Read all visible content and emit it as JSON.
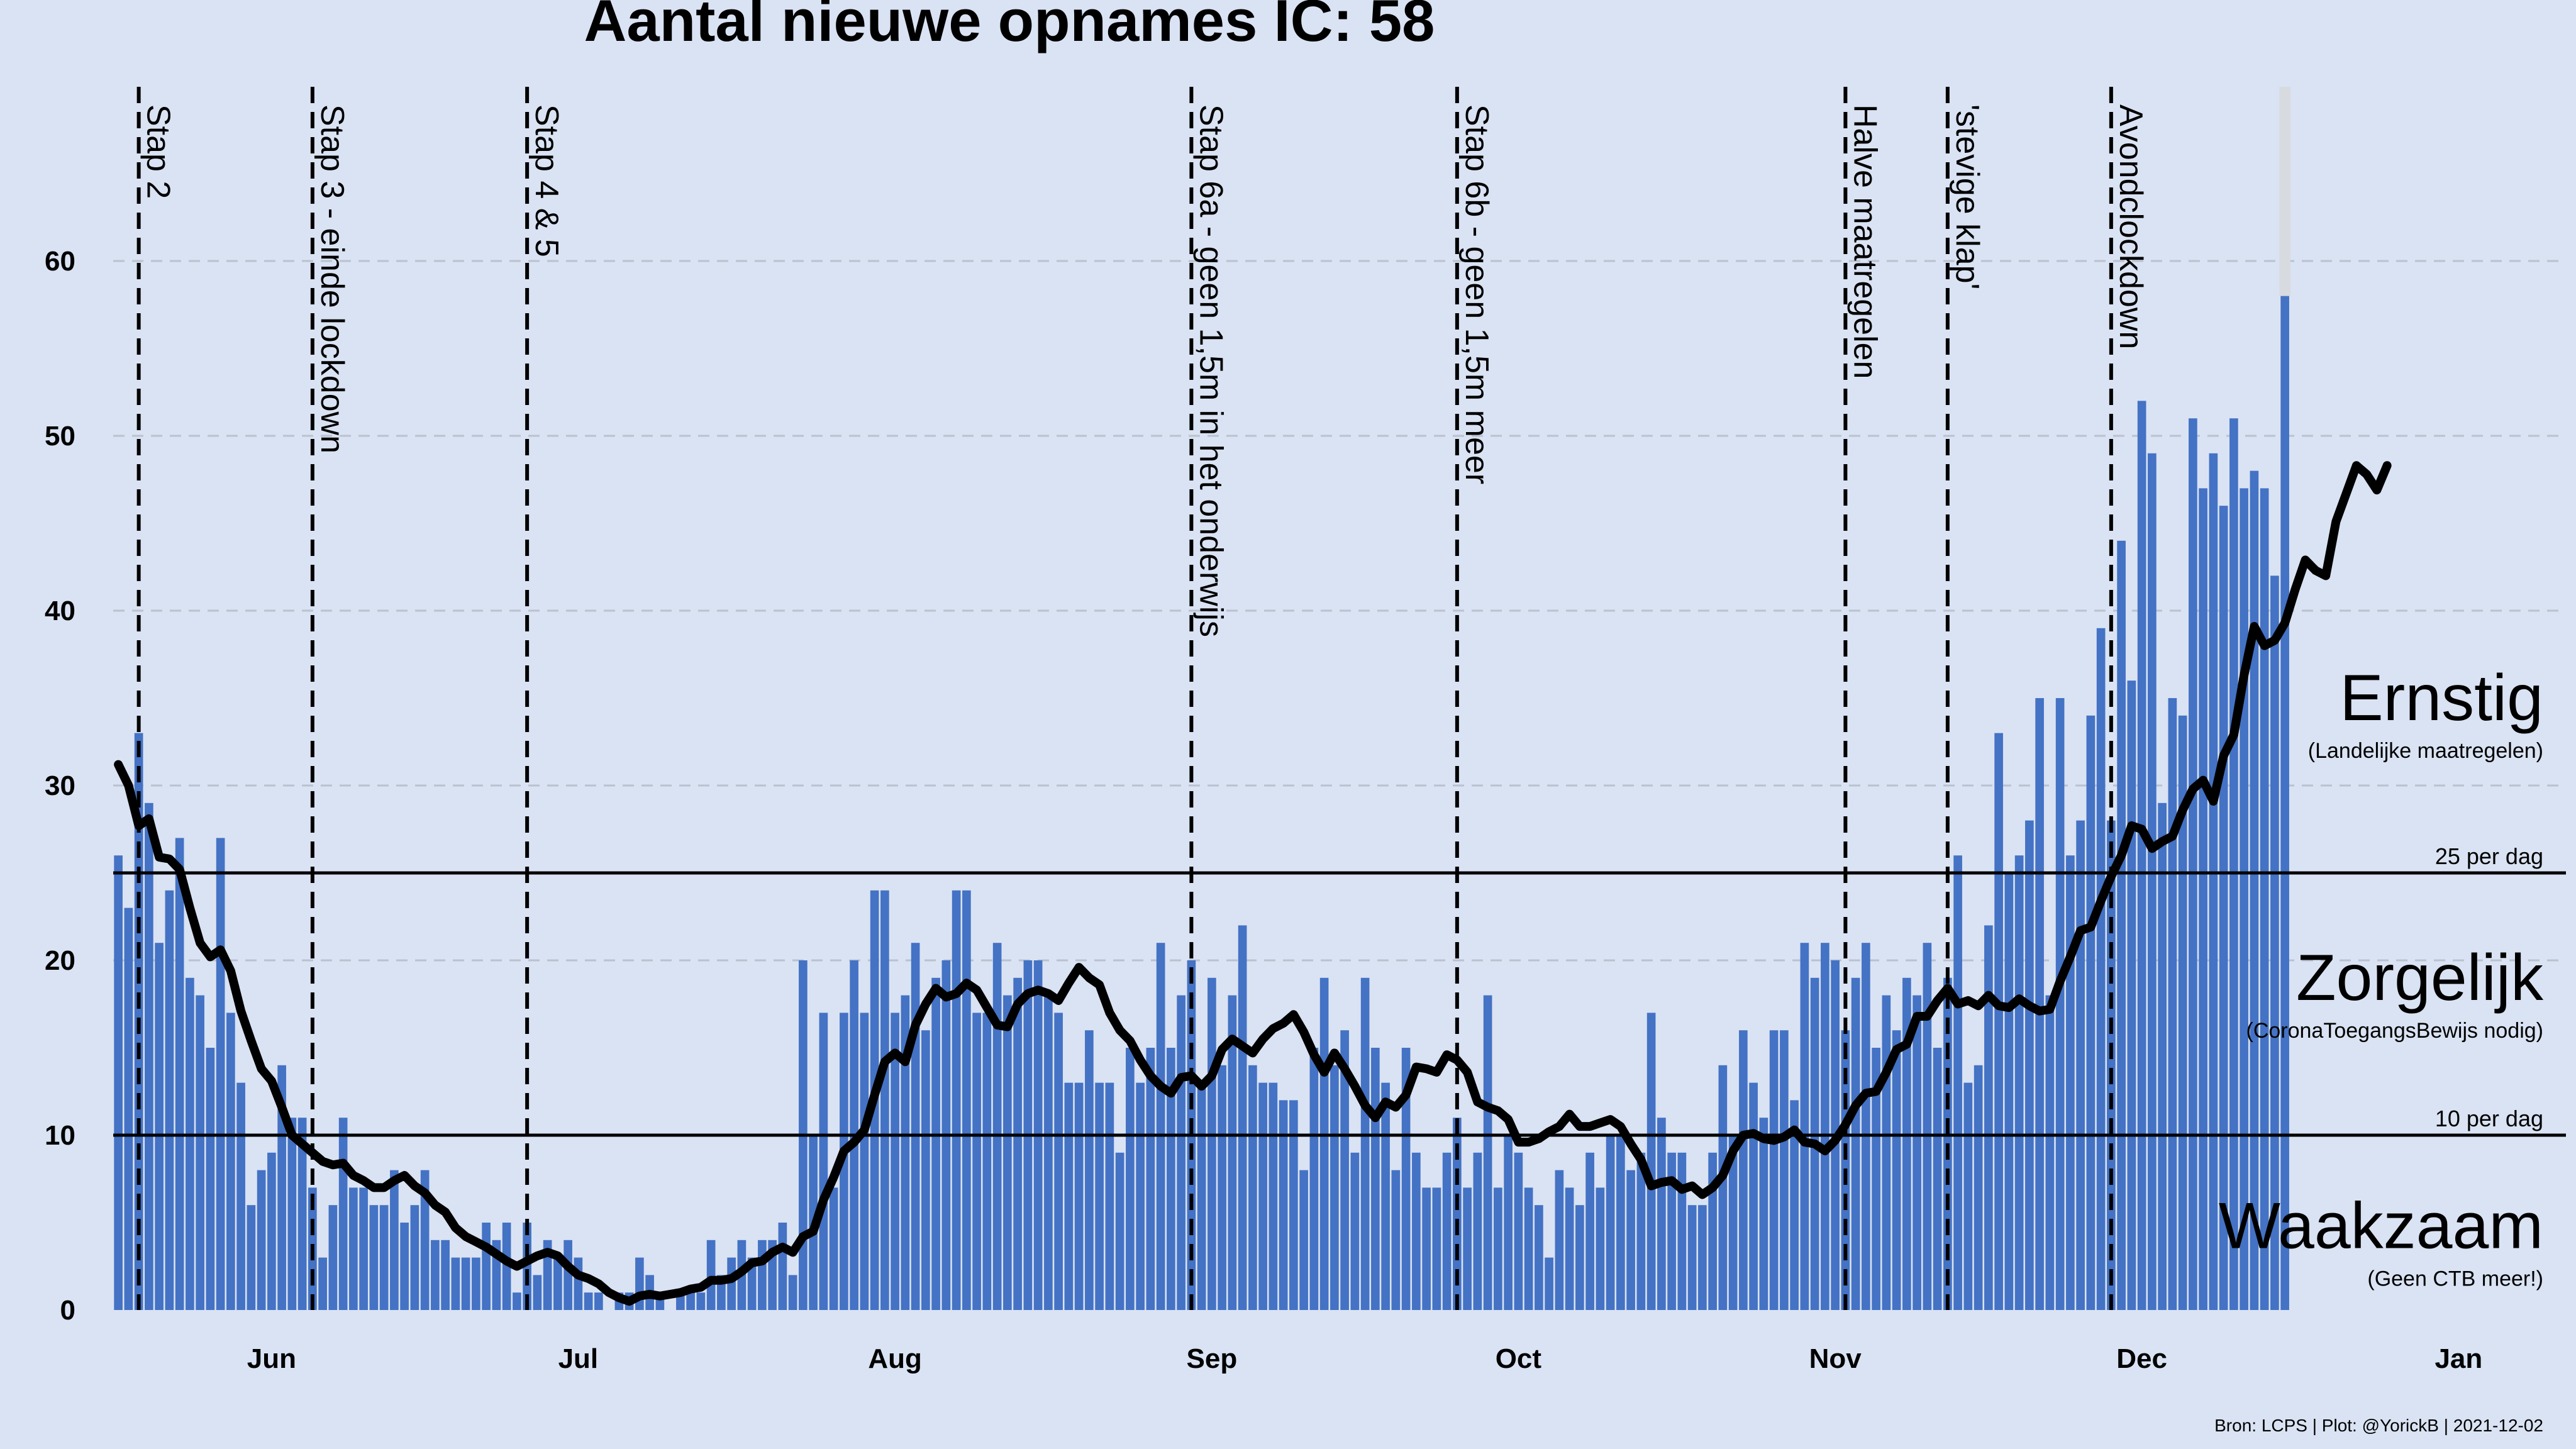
{
  "chart_data": {
    "type": "bar",
    "title": "Aantal nieuwe opnames IC:  58",
    "source": "Bron: LCPS | Plot: @YorickB |  2021-12-02",
    "x_start_date": "2021-05-17",
    "x_range": [
      "2021-05-17",
      "2022-01-12"
    ],
    "ylim": [
      0,
      70
    ],
    "y_ticks": [
      0,
      10,
      20,
      30,
      40,
      50,
      60
    ],
    "grid": "horizontal dashed",
    "bar_color": "#4472c4",
    "line_color": "#000000",
    "month_ticks": [
      {
        "label": "Jun",
        "date": "2021-06-01"
      },
      {
        "label": "Jul",
        "date": "2021-07-01"
      },
      {
        "label": "Aug",
        "date": "2021-08-01"
      },
      {
        "label": "Sep",
        "date": "2021-09-01"
      },
      {
        "label": "Oct",
        "date": "2021-10-01"
      },
      {
        "label": "Nov",
        "date": "2021-11-01"
      },
      {
        "label": "Dec",
        "date": "2021-12-01"
      },
      {
        "label": "Jan",
        "date": "2022-01-01"
      }
    ],
    "events": [
      {
        "label": "Stap 2",
        "date": "2021-05-19"
      },
      {
        "label": "Stap 3 - einde lockdown",
        "date": "2021-06-05"
      },
      {
        "label": "Stap 4 & 5",
        "date": "2021-06-26"
      },
      {
        "label": "Stap 6a - geen 1,5m in het onderwijs",
        "date": "2021-08-30"
      },
      {
        "label": "Stap 6b - geen 1,5m meer",
        "date": "2021-09-25"
      },
      {
        "label": "Halve maatregelen",
        "date": "2021-11-02"
      },
      {
        "label": "'stevige klap'",
        "date": "2021-11-12"
      },
      {
        "label": "Avondclockdown",
        "date": "2021-11-28"
      }
    ],
    "thresholds": [
      {
        "value": 25,
        "label": "25 per dag"
      },
      {
        "value": 10,
        "label": "10 per dag"
      }
    ],
    "zones": [
      {
        "name": "Ernstig",
        "note": "(Landelijke maatregelen)",
        "y": 35
      },
      {
        "name": "Zorgelijk",
        "note": "(CoronaToegangsBewijs nodig)",
        "y": 19
      },
      {
        "name": "Waakzaam",
        "note": "(Geen CTB meer!)",
        "y": 4.8
      }
    ],
    "series": [
      {
        "name": "daily",
        "values": [
          26,
          23,
          33,
          29,
          21,
          24,
          27,
          19,
          18,
          15,
          27,
          17,
          13,
          6,
          8,
          9,
          14,
          11,
          11,
          7,
          3,
          6,
          11,
          7,
          7,
          6,
          6,
          8,
          5,
          6,
          8,
          4,
          4,
          3,
          3,
          3,
          5,
          4,
          5,
          1,
          5,
          2,
          4,
          3,
          4,
          3,
          1,
          1,
          0,
          1,
          1,
          3,
          2,
          1,
          0,
          1,
          1,
          1,
          4,
          2,
          3,
          4,
          3,
          4,
          4,
          5,
          2,
          20,
          10,
          17,
          7,
          17,
          20,
          17,
          24,
          24,
          17,
          18,
          21,
          16,
          19,
          20,
          24,
          24,
          17,
          17,
          21,
          18,
          19,
          20,
          20,
          18,
          17,
          13,
          13,
          16,
          13,
          13,
          9,
          15,
          13,
          15,
          21,
          15,
          18,
          20,
          13,
          19,
          14,
          18,
          22,
          14,
          13,
          13,
          12,
          12,
          8,
          15,
          19,
          14,
          16,
          9,
          19,
          15,
          13,
          8,
          15,
          9,
          7,
          7,
          9,
          11,
          7,
          9,
          18,
          7,
          10,
          9,
          7,
          6,
          3,
          8,
          7,
          6,
          9,
          7,
          10,
          10,
          8,
          9,
          17,
          11,
          9,
          9,
          6,
          6,
          9,
          14,
          10,
          16,
          13,
          11,
          16,
          16,
          12,
          21,
          19,
          21,
          20,
          16,
          19,
          21,
          15,
          18,
          16,
          19,
          18,
          21,
          15,
          19,
          26,
          13,
          14,
          22,
          33,
          25,
          26,
          28,
          35,
          18,
          35,
          26,
          28,
          34,
          39,
          28,
          44,
          36,
          52,
          49,
          29,
          35,
          34,
          51,
          47,
          49,
          46,
          51,
          47,
          48,
          47,
          42,
          58
        ]
      },
      {
        "name": "7-day average",
        "values": [
          31.2,
          30.0,
          27.7,
          28.1,
          25.9,
          25.8,
          25.2,
          23.0,
          21.0,
          20.2,
          20.6,
          19.4,
          17.1,
          15.4,
          13.8,
          13.1,
          11.6,
          10.0,
          9.5,
          9.0,
          8.5,
          8.3,
          8.4,
          7.7,
          7.4,
          7.0,
          7.0,
          7.4,
          7.7,
          7.1,
          6.7,
          6.0,
          5.6,
          4.7,
          4.2,
          3.9,
          3.6,
          3.2,
          2.8,
          2.5,
          2.8,
          3.1,
          3.3,
          3.1,
          2.5,
          2.0,
          1.8,
          1.5,
          1.0,
          0.7,
          0.5,
          0.8,
          0.9,
          0.8,
          0.9,
          1.0,
          1.2,
          1.3,
          1.7,
          1.7,
          1.8,
          2.2,
          2.7,
          2.8,
          3.3,
          3.6,
          3.3,
          4.2,
          4.5,
          6.3,
          7.6,
          9.1,
          9.6,
          10.3,
          12.3,
          14.2,
          14.7,
          14.2,
          16.3,
          17.5,
          18.4,
          17.9,
          18.1,
          18.7,
          18.3,
          17.3,
          16.3,
          16.2,
          17.5,
          18.1,
          18.3,
          18.1,
          17.7,
          18.7,
          19.6,
          19.0,
          18.6,
          17.0,
          16.0,
          15.4,
          14.3,
          13.4,
          12.8,
          12.4,
          13.3,
          13.4,
          12.8,
          13.4,
          14.9,
          15.5,
          15.1,
          14.7,
          15.5,
          16.1,
          16.4,
          16.9,
          15.9,
          14.6,
          13.6,
          14.7,
          13.8,
          12.8,
          11.7,
          11.0,
          11.9,
          11.6,
          12.3,
          13.9,
          13.8,
          13.6,
          14.6,
          14.3,
          13.6,
          11.9,
          11.6,
          11.4,
          10.9,
          9.6,
          9.6,
          9.8,
          10.2,
          10.5,
          11.2,
          10.5,
          10.5,
          10.7,
          10.9,
          10.5,
          9.5,
          8.6,
          7.1,
          7.3,
          7.4,
          6.9,
          7.1,
          6.6,
          7.0,
          7.7,
          9.1,
          10.0,
          10.1,
          9.8,
          9.7,
          9.9,
          10.3,
          9.6,
          9.5,
          9.1,
          9.7,
          10.6,
          11.7,
          12.4,
          12.5,
          13.6,
          14.9,
          15.2,
          16.8,
          16.8,
          17.7,
          18.4,
          17.5,
          17.7,
          17.4,
          18.0,
          17.4,
          17.3,
          17.8,
          17.4,
          17.1,
          17.2,
          18.8,
          20.2,
          21.7,
          21.9,
          23.4,
          24.8,
          26.0,
          27.7,
          27.5,
          26.4,
          26.8,
          27.1,
          28.6,
          29.8,
          30.3,
          29.1,
          31.7,
          32.9,
          36.3,
          39.1,
          38.0,
          38.3,
          39.3,
          41.2,
          42.9,
          42.3,
          42.0,
          45.1,
          46.7,
          48.3,
          47.8,
          46.9,
          48.3
        ]
      }
    ]
  }
}
